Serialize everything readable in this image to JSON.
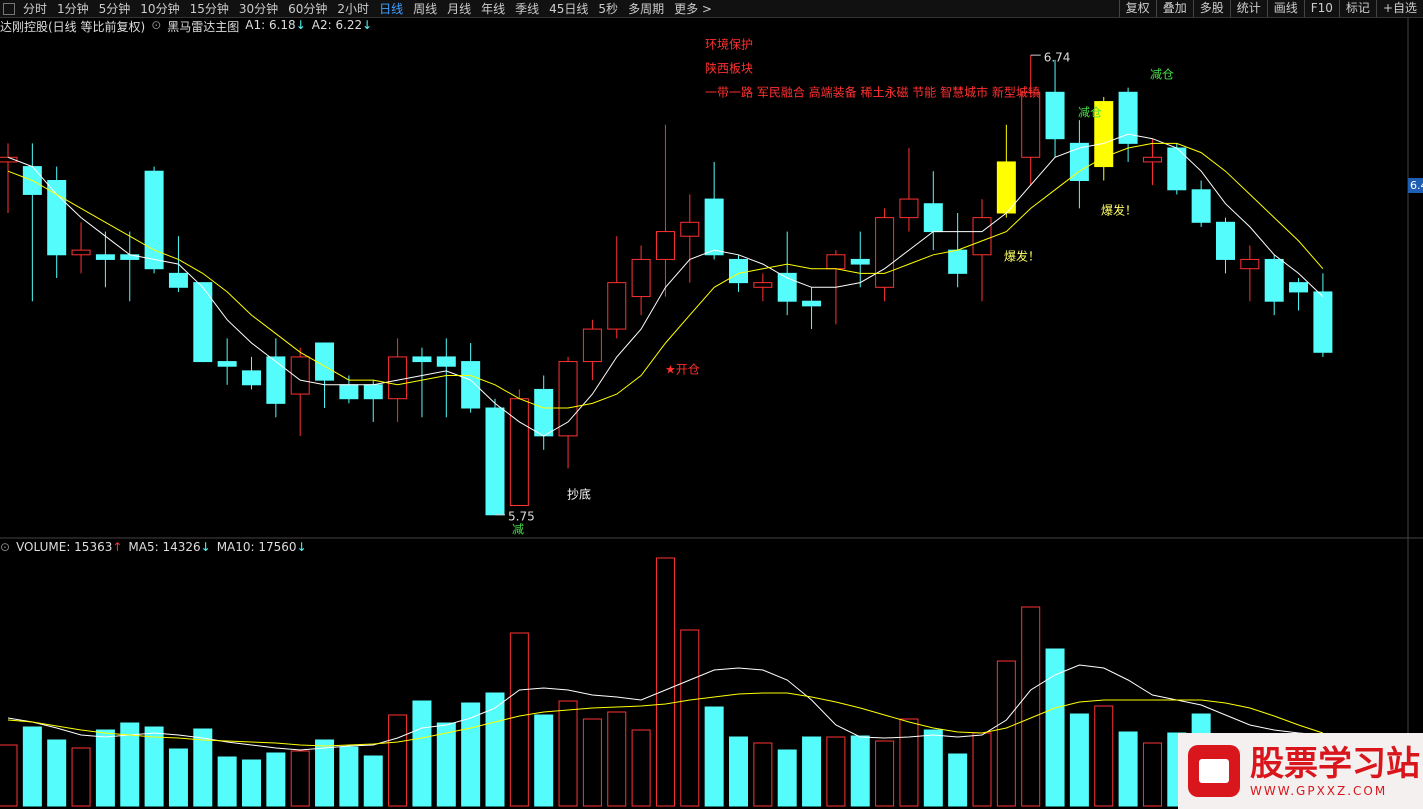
{
  "toolbar": {
    "periods": [
      "分时",
      "1分钟",
      "5分钟",
      "10分钟",
      "15分钟",
      "30分钟",
      "60分钟",
      "2小时",
      "日线",
      "周线",
      "月线",
      "年线",
      "季线",
      "45日线",
      "5秒",
      "多周期",
      "更多 >"
    ],
    "tools": [
      "复权",
      "叠加",
      "多股",
      "统计",
      "画线",
      "F10",
      "标记",
      "+自选"
    ],
    "price_tag": "6.4"
  },
  "chart_data": [
    {
      "type": "candlestick",
      "title": "达刚控股(日线 等比前复权)",
      "subtitle": "黑马雷达主图",
      "indicators": [
        {
          "text": "A1: 6.18",
          "arrow": "↓"
        },
        {
          "text": "A2: 6.22",
          "arrow": "↓"
        }
      ],
      "open": [
        6.51,
        6.5,
        6.47,
        6.31,
        6.31,
        6.31,
        6.49,
        6.27,
        6.25,
        6.08,
        6.06,
        6.09,
        6.01,
        6.12,
        6.03,
        6.03,
        6.0,
        6.09,
        6.09,
        6.08,
        5.98,
        5.77,
        6.02,
        5.92,
        6.08,
        6.15,
        6.22,
        6.3,
        6.35,
        6.43,
        6.3,
        6.24,
        6.27,
        6.21,
        6.28,
        6.3,
        6.24,
        6.39,
        6.42,
        6.32,
        6.31,
        6.4,
        6.52,
        6.66,
        6.55,
        6.5,
        6.66,
        6.51,
        6.54,
        6.45,
        6.38,
        6.28,
        6.3,
        6.25,
        6.23
      ],
      "high": [
        6.55,
        6.55,
        6.5,
        6.38,
        6.36,
        6.36,
        6.5,
        6.35,
        6.25,
        6.13,
        6.09,
        6.13,
        6.11,
        6.12,
        6.05,
        6.04,
        6.13,
        6.11,
        6.13,
        6.12,
        6.0,
        6.02,
        6.05,
        6.09,
        6.17,
        6.35,
        6.33,
        6.59,
        6.44,
        6.51,
        6.31,
        6.27,
        6.36,
        6.24,
        6.32,
        6.36,
        6.41,
        6.54,
        6.49,
        6.4,
        6.43,
        6.59,
        6.74,
        6.73,
        6.6,
        6.65,
        6.67,
        6.56,
        6.55,
        6.47,
        6.39,
        6.33,
        6.31,
        6.26,
        6.27
      ],
      "low": [
        6.4,
        6.21,
        6.26,
        6.27,
        6.24,
        6.21,
        6.27,
        6.23,
        6.08,
        6.03,
        6.02,
        5.96,
        5.92,
        5.98,
        5.99,
        5.95,
        5.95,
        5.96,
        5.96,
        5.97,
        5.75,
        5.77,
        5.89,
        5.85,
        6.04,
        6.13,
        6.18,
        6.22,
        6.25,
        6.3,
        6.23,
        6.21,
        6.18,
        6.15,
        6.16,
        6.24,
        6.21,
        6.36,
        6.32,
        6.24,
        6.21,
        6.39,
        6.46,
        6.52,
        6.41,
        6.47,
        6.51,
        6.46,
        6.44,
        6.37,
        6.27,
        6.21,
        6.18,
        6.19,
        6.09
      ],
      "close": [
        6.52,
        6.44,
        6.31,
        6.32,
        6.3,
        6.3,
        6.28,
        6.24,
        6.08,
        6.07,
        6.03,
        5.99,
        6.09,
        6.04,
        6.0,
        6.0,
        6.09,
        6.08,
        6.07,
        5.98,
        5.75,
        6.0,
        5.92,
        6.08,
        6.15,
        6.25,
        6.3,
        6.36,
        6.38,
        6.31,
        6.25,
        6.25,
        6.21,
        6.2,
        6.31,
        6.29,
        6.39,
        6.43,
        6.36,
        6.27,
        6.39,
        6.51,
        6.66,
        6.56,
        6.47,
        6.64,
        6.55,
        6.52,
        6.45,
        6.38,
        6.3,
        6.3,
        6.21,
        6.23,
        6.1
      ],
      "up_color": "#ff3232",
      "down_color": "#54fcfc",
      "highlight": [
        41,
        45
      ],
      "highlight_color": "#ffff00",
      "series": [
        {
          "color": "#ffffff",
          "values": [
            6.52,
            6.5,
            6.44,
            6.39,
            6.35,
            6.31,
            6.3,
            6.29,
            6.24,
            6.17,
            6.12,
            6.08,
            6.04,
            6.03,
            6.03,
            6.03,
            6.04,
            6.05,
            6.06,
            6.04,
            5.99,
            5.95,
            5.92,
            5.95,
            6.01,
            6.09,
            6.15,
            6.24,
            6.3,
            6.32,
            6.31,
            6.29,
            6.26,
            6.24,
            6.24,
            6.25,
            6.28,
            6.32,
            6.36,
            6.36,
            6.36,
            6.4,
            6.46,
            6.52,
            6.54,
            6.55,
            6.57,
            6.56,
            6.54,
            6.49,
            6.42,
            6.37,
            6.31,
            6.27,
            6.22
          ]
        },
        {
          "color": "#ffff00",
          "values": [
            6.49,
            6.47,
            6.44,
            6.41,
            6.38,
            6.35,
            6.32,
            6.3,
            6.27,
            6.23,
            6.18,
            6.14,
            6.1,
            6.07,
            6.04,
            6.04,
            6.03,
            6.04,
            6.05,
            6.05,
            6.03,
            6.0,
            5.98,
            5.98,
            5.99,
            6.01,
            6.05,
            6.12,
            6.18,
            6.24,
            6.27,
            6.28,
            6.29,
            6.28,
            6.28,
            6.27,
            6.27,
            6.29,
            6.31,
            6.32,
            6.34,
            6.36,
            6.41,
            6.45,
            6.49,
            6.52,
            6.54,
            6.55,
            6.55,
            6.53,
            6.49,
            6.44,
            6.39,
            6.34,
            6.28
          ]
        }
      ],
      "ylim": [
        5.7,
        6.82
      ],
      "max_label": 6.74,
      "min_label": 5.75,
      "annotations": [
        "环境保护",
        "陕西板块",
        "一带一路 军民融合 高端装备 稀土永磁 节能 智慧城市 新型城镇",
        "★开仓",
        "抄底",
        "减",
        "爆发！",
        "爆发！",
        "减仓",
        "减仓"
      ]
    },
    {
      "type": "volume",
      "title": "VOLUME: 15363",
      "title_arrow": "↑",
      "indicators": [
        {
          "text": "MA5: 14326",
          "arrow": "↓"
        },
        {
          "text": "MA10: 17560",
          "arrow": "↓"
        }
      ],
      "values": [
        14640,
        18960,
        15840,
        13920,
        18240,
        19920,
        18960,
        13680,
        18480,
        11760,
        11040,
        12720,
        13200,
        15840,
        14160,
        12000,
        21840,
        25200,
        19920,
        24720,
        27120,
        41520,
        21840,
        25200,
        20880,
        22560,
        18240,
        59520,
        42240,
        23760,
        16560,
        15120,
        13440,
        16560,
        16560,
        16800,
        15600,
        20880,
        18240,
        12480,
        17520,
        34800,
        47760,
        37680,
        22080,
        24000,
        17760,
        15120,
        17520,
        22080,
        null,
        null,
        null,
        null,
        null
      ],
      "series": [
        {
          "color": "#ffffff",
          "values": [
            21120,
            20160,
            18720,
            17040,
            16560,
            17040,
            17520,
            17040,
            16320,
            15360,
            14640,
            13920,
            13440,
            13920,
            14400,
            14640,
            16320,
            18720,
            19440,
            21120,
            23520,
            27840,
            28320,
            27840,
            26640,
            26160,
            25440,
            27840,
            30240,
            32640,
            33120,
            32640,
            30240,
            25440,
            19440,
            16560,
            16320,
            16560,
            17040,
            16560,
            17040,
            20640,
            27840,
            31440,
            33840,
            33120,
            30240,
            26640,
            25440,
            24240,
            21840,
            19440,
            18240,
            17520,
            17040
          ]
        },
        {
          "color": "#ffff00",
          "values": [
            20640,
            20160,
            19200,
            18240,
            17520,
            17040,
            16560,
            16320,
            15840,
            15600,
            15360,
            15120,
            14640,
            14400,
            14640,
            14880,
            15360,
            16320,
            17520,
            18720,
            20160,
            21600,
            22560,
            23040,
            23520,
            23760,
            24000,
            24480,
            25440,
            26160,
            26880,
            27120,
            27120,
            26160,
            24960,
            23520,
            21840,
            20160,
            18720,
            17760,
            17520,
            18720,
            21120,
            23520,
            24960,
            25440,
            25440,
            25440,
            25440,
            25440,
            24720,
            23520,
            21600,
            19440,
            17520
          ]
        }
      ],
      "ylim": [
        0,
        63840
      ]
    }
  ],
  "watermark": {
    "title": "股票学习站",
    "url": "WWW.GPXXZ.COM"
  }
}
